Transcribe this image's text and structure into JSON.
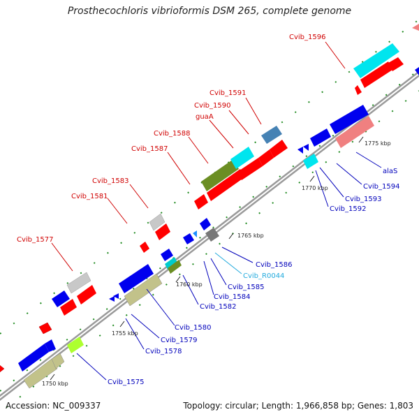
{
  "title": "Prosthecochloris vibrioformis DSM 265, complete genome",
  "footer": {
    "accession": "Accession: NC_009337",
    "summary": "Topology: circular; Length: 1,966,858 bp; Genes: 1,803"
  },
  "colors": {
    "forward_label": "#d00000",
    "reverse_label": "#0000bb",
    "rna_label": "#22aadd",
    "red": "#ff0000",
    "blue": "#0000ee",
    "cyan": "#00e5ee",
    "olive": "#6b8e23",
    "khaki": "#c2c28a",
    "gray": "#c0c0c0",
    "steel": "#4682b4",
    "salmon": "#f08080",
    "green_yellow": "#adff2f"
  },
  "kbp_marks": [
    "1750 kbp",
    "1755 kbp",
    "1760 kbp",
    "1765 kbp",
    "1770 kbp",
    "1775 kbp"
  ],
  "gene_labels": [
    {
      "name": "Cvib_1596",
      "strand": "forward"
    },
    {
      "name": "Cvib_1591",
      "strand": "forward"
    },
    {
      "name": "Cvib_1590",
      "strand": "forward"
    },
    {
      "name": "guaA",
      "strand": "forward"
    },
    {
      "name": "Cvib_1588",
      "strand": "forward"
    },
    {
      "name": "Cvib_1587",
      "strand": "forward"
    },
    {
      "name": "Cvib_1583",
      "strand": "forward"
    },
    {
      "name": "Cvib_1581",
      "strand": "forward"
    },
    {
      "name": "Cvib_1577",
      "strand": "forward"
    },
    {
      "name": "alaS",
      "strand": "reverse"
    },
    {
      "name": "Cvib_1594",
      "strand": "reverse"
    },
    {
      "name": "Cvib_1593",
      "strand": "reverse"
    },
    {
      "name": "Cvib_1592",
      "strand": "reverse"
    },
    {
      "name": "Cvib_1586",
      "strand": "reverse"
    },
    {
      "name": "Cvib_R0044",
      "strand": "rna"
    },
    {
      "name": "Cvib_1585",
      "strand": "reverse"
    },
    {
      "name": "Cvib_1584",
      "strand": "reverse"
    },
    {
      "name": "Cvib_1582",
      "strand": "reverse"
    },
    {
      "name": "Cvib_1580",
      "strand": "reverse"
    },
    {
      "name": "Cvib_1579",
      "strand": "reverse"
    },
    {
      "name": "Cvib_1578",
      "strand": "reverse"
    },
    {
      "name": "Cvib_1575",
      "strand": "reverse"
    }
  ]
}
